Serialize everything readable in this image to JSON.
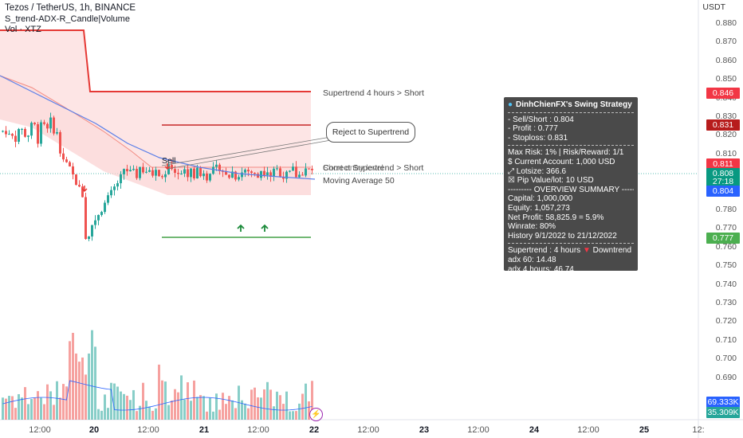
{
  "header": {
    "symbol_line": "Tezos / TetherUS, 1h, BINANCE",
    "indicator_line": "S_trend-ADX-R_Candle|Volume",
    "volume_line": "Vol · XTZ"
  },
  "price_axis": {
    "currency": "USDT",
    "ticks": [
      "0.880",
      "0.870",
      "0.860",
      "0.850",
      "0.840",
      "0.830",
      "0.820",
      "0.810",
      "0.800",
      "0.790",
      "0.780",
      "0.770",
      "0.760",
      "0.750",
      "0.740",
      "0.730",
      "0.720",
      "0.710",
      "0.700",
      "0.690"
    ],
    "price_tags": [
      {
        "value": "0.846",
        "color": "#f23645"
      },
      {
        "value": "0.831",
        "color": "#b71c1c"
      },
      {
        "value": "0.811",
        "color": "#f23645"
      },
      {
        "value": "0.808",
        "color": "#089981"
      },
      {
        "value": "27:18",
        "color": "#089981"
      },
      {
        "value": "0.804",
        "color": "#2962ff"
      },
      {
        "value": "0.777",
        "color": "#4caf50"
      },
      {
        "value": "69.333K",
        "color": "#2962ff"
      },
      {
        "value": "35.309K",
        "color": "#26a69a"
      }
    ]
  },
  "time_axis": {
    "labels": [
      {
        "text": "12:00",
        "day": false
      },
      {
        "text": "20",
        "day": true
      },
      {
        "text": "12:00",
        "day": false
      },
      {
        "text": "21",
        "day": true
      },
      {
        "text": "12:00",
        "day": false
      },
      {
        "text": "22",
        "day": true
      },
      {
        "text": "12:00",
        "day": false
      },
      {
        "text": "23",
        "day": true
      },
      {
        "text": "12:00",
        "day": false
      },
      {
        "text": "24",
        "day": true
      },
      {
        "text": "12:00",
        "day": false
      },
      {
        "text": "25",
        "day": true
      },
      {
        "text": "12:",
        "day": false
      }
    ]
  },
  "annotations": {
    "supertrend_4h": "Supertrend 4 hours > Short",
    "short_entry_overlap": "Short entry level",
    "correct_supertrend": "Correct Supertrend  > Short",
    "moving_average": "Moving Average 50",
    "reject_callout": "Reject to Supertrend",
    "sell_label": "Sell"
  },
  "info_panel": {
    "title": "DinhChienFX's Swing Strategy",
    "sell_short": "- Sell/Short    : 0.804",
    "profit": "- Profit  : 0.777",
    "stoploss": "- Stoploss: 0.831",
    "max_risk": "Max Risk: 1% | Risk/Reward: 1/1",
    "current_account": "$ Current Account: 1,000 USD",
    "lotsize": "⤢ Lotsize: 366.6",
    "pip_value": "☒ Pip Value/lot: 10 USD",
    "overview": "--------- OVERVIEW SUMMARY ---------",
    "capital": "Capital: 1,000,000",
    "equity": "Equity: 1,057,273",
    "net_profit": "Net Profit: 58,825.9 = 5.9%",
    "winrate": "Winrate: 80%",
    "history": "History 9/1/2022 to 21/12/2022",
    "supertrend_status_prefix": "Supertrend : 4 hours",
    "supertrend_status_value": "Downtrend",
    "adx60": "adx 60: 14.48",
    "adx4h": "adx 4 hours: 46.74"
  },
  "colors": {
    "bull": "#26a69a",
    "bear": "#ef5350",
    "supertrend_fill": "#fde0e0",
    "supertrend_line": "#e53935",
    "ma": "#5b7fe8",
    "target_line": "#43a047",
    "stop_line": "#c62828"
  }
}
